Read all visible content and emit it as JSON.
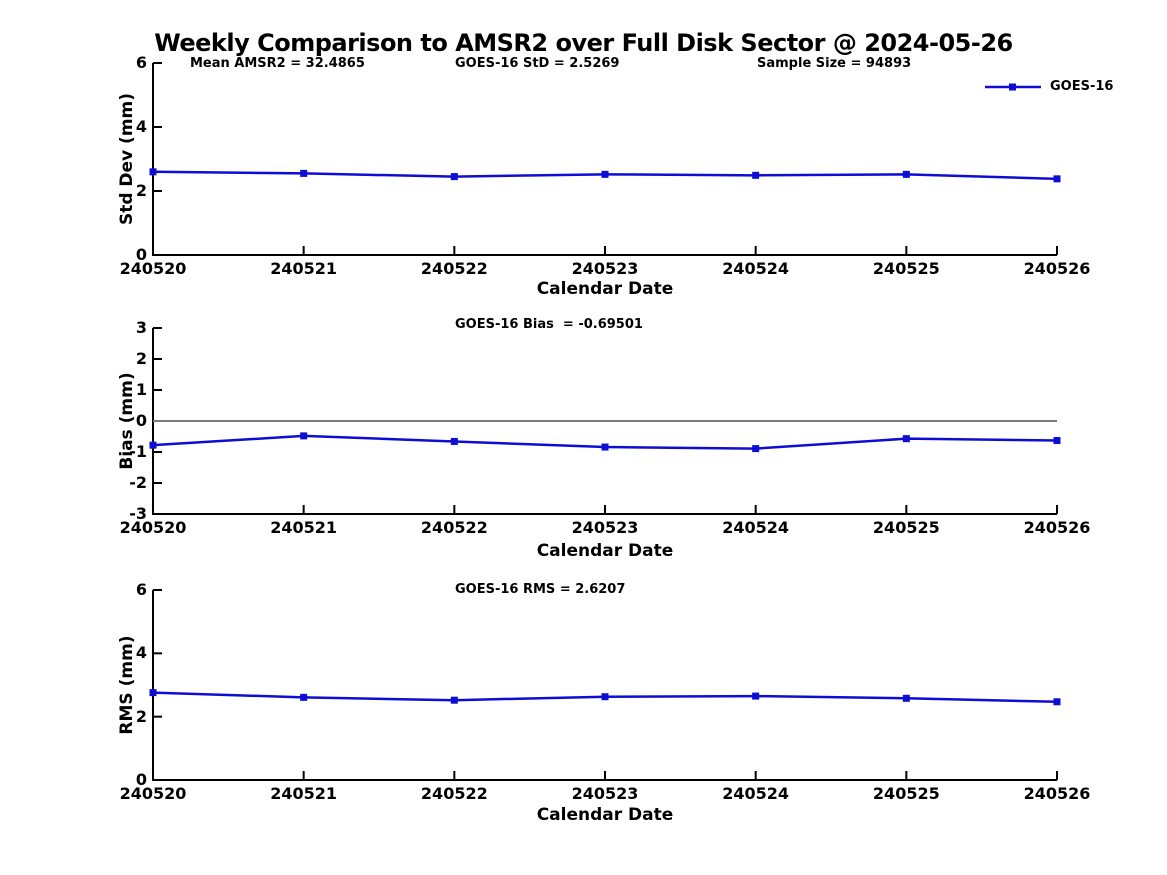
{
  "title": "Weekly Comparison to AMSR2 over Full Disk Sector @ 2024-05-26",
  "legend": {
    "label": "GOES-16",
    "position": "top-right"
  },
  "colors": {
    "series": "#0d0dd6",
    "zero_line": "#7a7a7a",
    "axis": "#000000"
  },
  "chart_data": [
    {
      "type": "line",
      "title": "",
      "annotations": [
        "Mean AMSR2 = 32.4865",
        "GOES-16 StD = 2.5269",
        "Sample Size = 94893"
      ],
      "categories": [
        "240520",
        "240521",
        "240522",
        "240523",
        "240524",
        "240525",
        "240526"
      ],
      "series": [
        {
          "name": "GOES-16",
          "color": "#0d0dd6",
          "marker": "square",
          "values": [
            2.6,
            2.55,
            2.45,
            2.52,
            2.49,
            2.52,
            2.38
          ]
        }
      ],
      "xlabel": "Calendar Date",
      "ylabel": "Std Dev (mm)",
      "ylim": [
        0,
        6
      ],
      "yticks": [
        0,
        2,
        4,
        6
      ],
      "grid": false,
      "zero_line": false
    },
    {
      "type": "line",
      "title": "",
      "annotations": [
        "GOES-16 Bias  = -0.69501"
      ],
      "categories": [
        "240520",
        "240521",
        "240522",
        "240523",
        "240524",
        "240525",
        "240526"
      ],
      "series": [
        {
          "name": "GOES-16",
          "color": "#0d0dd6",
          "marker": "square",
          "values": [
            -0.78,
            -0.48,
            -0.66,
            -0.84,
            -0.89,
            -0.57,
            -0.63
          ]
        }
      ],
      "xlabel": "Calendar Date",
      "ylabel": "Bias (mm)",
      "ylim": [
        -3,
        3
      ],
      "yticks": [
        3,
        2,
        1,
        0,
        -1,
        -2,
        -3
      ],
      "grid": false,
      "zero_line": true
    },
    {
      "type": "line",
      "title": "",
      "annotations": [
        "GOES-16 RMS = 2.6207"
      ],
      "categories": [
        "240520",
        "240521",
        "240522",
        "240523",
        "240524",
        "240525",
        "240526"
      ],
      "series": [
        {
          "name": "GOES-16",
          "color": "#0d0dd6",
          "marker": "square",
          "values": [
            2.76,
            2.61,
            2.52,
            2.63,
            2.65,
            2.58,
            2.47
          ]
        }
      ],
      "xlabel": "Calendar Date",
      "ylabel": "RMS (mm)",
      "ylim": [
        0,
        6
      ],
      "yticks": [
        0,
        2,
        4,
        6
      ],
      "grid": false,
      "zero_line": false
    }
  ]
}
